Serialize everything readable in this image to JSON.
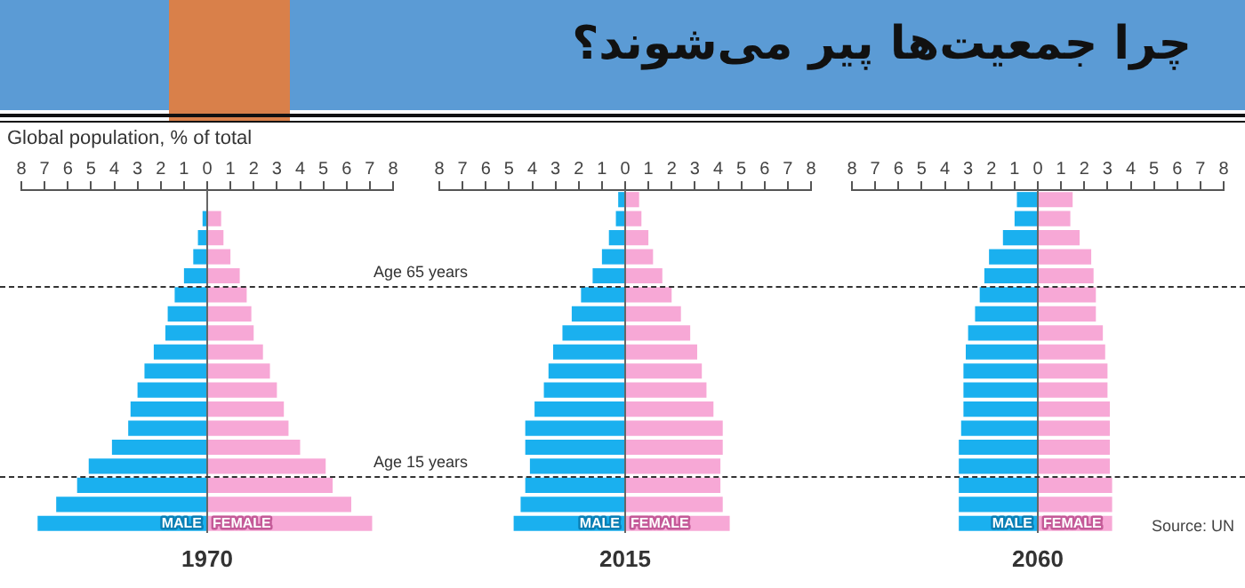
{
  "chart_data": [
    {
      "type": "bar",
      "orientation": "horizontal",
      "stacked": true,
      "subtitle": "Global population, % of total",
      "xlabel": "1970",
      "categories": [
        null,
        null,
        null,
        null,
        null,
        null,
        null,
        null,
        null,
        null,
        null,
        null,
        null,
        null,
        null,
        null,
        null,
        null
      ],
      "xlim": [
        -8,
        8
      ],
      "xticks": [
        {
          "value": -8,
          "label": "8"
        },
        {
          "value": -7,
          "label": "7"
        },
        {
          "value": -6,
          "label": "6"
        },
        {
          "value": -5,
          "label": "5"
        },
        {
          "value": -4,
          "label": "4"
        },
        {
          "value": -3,
          "label": "3"
        },
        {
          "value": -2,
          "label": "2"
        },
        {
          "value": -1,
          "label": "1"
        },
        0,
        1,
        2,
        3,
        4,
        5,
        6,
        7,
        8
      ],
      "tick_labels": "x",
      "legend": "bottom",
      "series": [
        {
          "name": "MALE",
          "color": "#1ab0ef",
          "values": [
            null,
            -0.2,
            -0.4,
            -0.6,
            -1.0,
            -1.4,
            -1.7,
            -1.8,
            -2.3,
            -2.7,
            -3.0,
            -3.3,
            -3.4,
            -4.1,
            -5.1,
            -5.6,
            -6.5,
            -7.3
          ]
        },
        {
          "name": "FEMALE",
          "color": "#f7a8d6",
          "values": [
            null,
            0.6,
            0.7,
            1.0,
            1.4,
            1.7,
            1.9,
            2.0,
            2.4,
            2.7,
            3.0,
            3.3,
            3.5,
            4.0,
            5.1,
            5.4,
            6.2,
            7.1
          ]
        }
      ],
      "annotations": [
        "Age 65 years",
        "Age 15 years"
      ]
    },
    {
      "type": "bar",
      "orientation": "horizontal",
      "stacked": true,
      "xlabel": "2015",
      "categories": [
        null,
        null,
        null,
        null,
        null,
        null,
        null,
        null,
        null,
        null,
        null,
        null,
        null,
        null,
        null,
        null,
        null,
        null
      ],
      "xlim": [
        -8,
        8
      ],
      "xticks": [
        {
          "value": -8,
          "label": "8"
        },
        {
          "value": -7,
          "label": "7"
        },
        {
          "value": -6,
          "label": "6"
        },
        {
          "value": -5,
          "label": "5"
        },
        {
          "value": -4,
          "label": "4"
        },
        {
          "value": -3,
          "label": "3"
        },
        {
          "value": -2,
          "label": "2"
        },
        {
          "value": -1,
          "label": "1"
        },
        0,
        1,
        2,
        3,
        4,
        5,
        6,
        7,
        8
      ],
      "tick_labels": "x",
      "legend": "bottom",
      "series": [
        {
          "name": "MALE",
          "color": "#1ab0ef",
          "values": [
            -0.3,
            -0.4,
            -0.7,
            -1.0,
            -1.4,
            -1.9,
            -2.3,
            -2.7,
            -3.1,
            -3.3,
            -3.5,
            -3.9,
            -4.3,
            -4.3,
            -4.1,
            -4.3,
            -4.5,
            -4.8
          ]
        },
        {
          "name": "FEMALE",
          "color": "#f7a8d6",
          "values": [
            0.6,
            0.7,
            1.0,
            1.2,
            1.6,
            2.0,
            2.4,
            2.8,
            3.1,
            3.3,
            3.5,
            3.8,
            4.2,
            4.2,
            4.1,
            4.1,
            4.2,
            4.5
          ]
        }
      ]
    },
    {
      "type": "bar",
      "orientation": "horizontal",
      "stacked": true,
      "title": "چرا جمعیت‌ها پیر می‌شوند؟",
      "xlabel": "2060",
      "categories": [
        null,
        null,
        null,
        null,
        null,
        null,
        null,
        null,
        null,
        null,
        null,
        null,
        null,
        null,
        null,
        null,
        null,
        null
      ],
      "xlim": [
        -8,
        8
      ],
      "xticks": [
        {
          "value": -8,
          "label": "8"
        },
        {
          "value": -7,
          "label": "7"
        },
        {
          "value": -6,
          "label": "6"
        },
        {
          "value": -5,
          "label": "5"
        },
        {
          "value": -4,
          "label": "4"
        },
        {
          "value": -3,
          "label": "3"
        },
        {
          "value": -2,
          "label": "2"
        },
        {
          "value": -1,
          "label": "1"
        },
        0,
        1,
        2,
        3,
        4,
        5,
        6,
        7,
        8
      ],
      "tick_labels": "x",
      "legend": "bottom",
      "series": [
        {
          "name": "MALE",
          "color": "#1ab0ef",
          "values": [
            -0.9,
            -1.0,
            -1.5,
            -2.1,
            -2.3,
            -2.5,
            -2.7,
            -3.0,
            -3.1,
            -3.2,
            -3.2,
            -3.2,
            -3.3,
            -3.4,
            -3.4,
            -3.4,
            -3.4,
            -3.4
          ]
        },
        {
          "name": "FEMALE",
          "color": "#f7a8d6",
          "values": [
            1.5,
            1.4,
            1.8,
            2.3,
            2.4,
            2.5,
            2.5,
            2.8,
            2.9,
            3.0,
            3.0,
            3.1,
            3.1,
            3.1,
            3.1,
            3.2,
            3.2,
            3.2
          ]
        }
      ],
      "annotations": [
        "Source: UN"
      ]
    }
  ]
}
